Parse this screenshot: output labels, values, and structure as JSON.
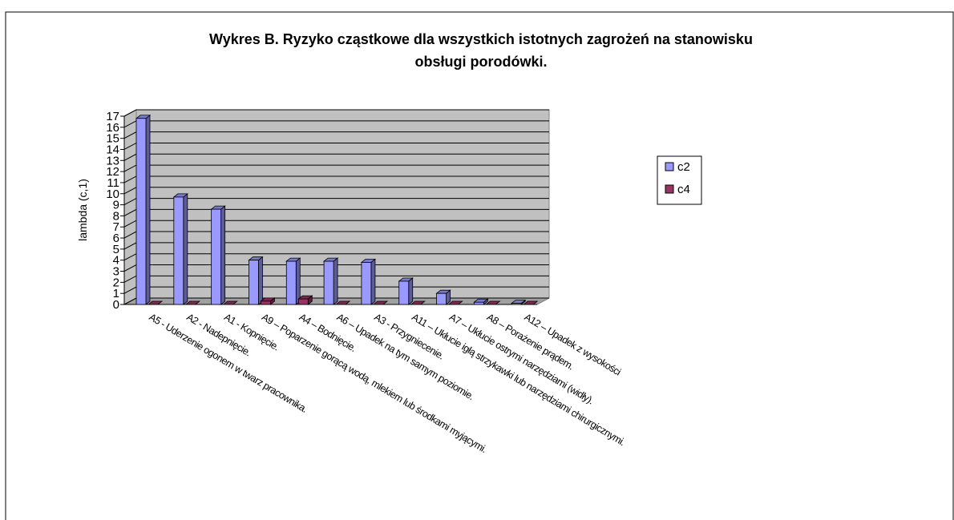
{
  "chart_data": {
    "type": "bar3d",
    "title": "Wykres B. Ryzyko cząstkowe dla wszystkich istotnych zagrożeń na stanowisku",
    "subtitle": "obsługi porodówki.",
    "y_label": "lambda (c,1)",
    "categories": [
      "A5 - Uderzenie ogonem w twarz pracownika.",
      "A2 - Nadepnięcie.",
      "A1 - Kopnięcie.",
      "A9 – Poparzenie gorącą wodą, mlekiem lub środkami myjącymi.",
      "A4 – Bodnięcie.",
      "A6 – Upadek na tym samym poziomie.",
      "A3 - Przygniecenie.",
      "A11 – Ukłucie igłą strzykawki lub narzędziami chirurgicznymi.",
      "A7 – Ukłucie ostrymi narzędziami (widły).",
      "A8 – Porażenie prądem.",
      "A12 – Upadek z wysokości"
    ],
    "series": [
      {
        "name": "c2",
        "color": "#9999ff",
        "values": [
          16.8,
          9.7,
          8.6,
          4.0,
          3.9,
          3.9,
          3.8,
          2.1,
          1.0,
          0.2,
          0.1
        ]
      },
      {
        "name": "c4",
        "color": "#993366",
        "values": [
          0,
          0,
          0,
          0.3,
          0.5,
          0,
          0,
          0,
          0,
          0,
          0
        ]
      }
    ],
    "ylim": [
      0,
      17
    ],
    "yticks": [
      0,
      1,
      2,
      3,
      4,
      5,
      6,
      7,
      8,
      9,
      10,
      11,
      12,
      13,
      14,
      15,
      16,
      17
    ],
    "grid": true,
    "legend": "right"
  }
}
